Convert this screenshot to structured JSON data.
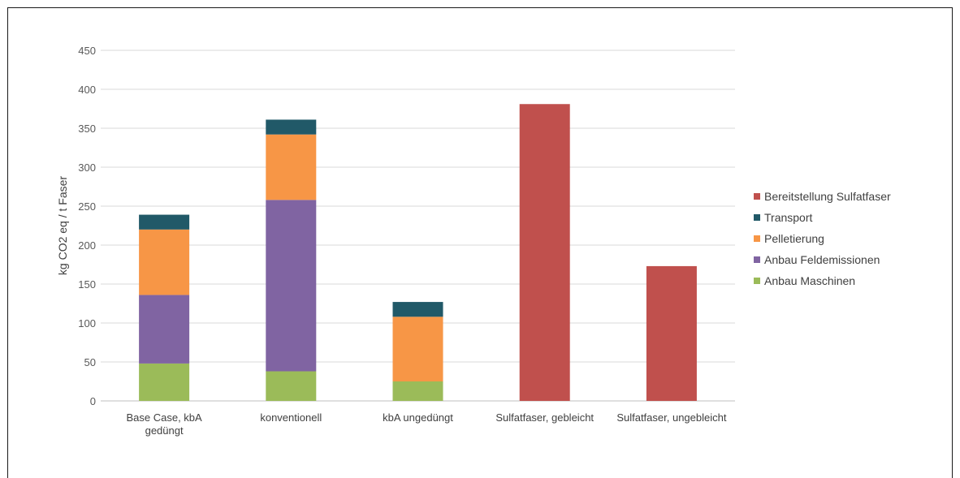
{
  "chart_data": {
    "type": "bar",
    "stacked": true,
    "ylabel": "kg CO2 eq / t Faser",
    "ylim": [
      0,
      450
    ],
    "yticks": [
      0,
      50,
      100,
      150,
      200,
      250,
      300,
      350,
      400,
      450
    ],
    "grid": true,
    "legend_position": "right",
    "categories": [
      [
        "Base Case, kbA",
        "gedüngt"
      ],
      [
        "konventionell"
      ],
      [
        "kbA ungedüngt"
      ],
      [
        "Sulfatfaser, gebleicht"
      ],
      [
        "Sulfatfaser, ungebleicht"
      ]
    ],
    "series": [
      {
        "name": "Anbau Maschinen",
        "color": "#9bbb59",
        "values": [
          48,
          38,
          25,
          0,
          0
        ]
      },
      {
        "name": "Anbau Feldemissionen",
        "color": "#8064a2",
        "values": [
          88,
          220,
          0,
          0,
          0
        ]
      },
      {
        "name": "Pelletierung",
        "color": "#f79646",
        "values": [
          84,
          84,
          83,
          0,
          0
        ]
      },
      {
        "name": "Transport",
        "color": "#215968",
        "values": [
          19,
          19,
          19,
          0,
          0
        ]
      },
      {
        "name": "Bereitstellung Sulfatfaser",
        "color": "#c0504d",
        "values": [
          0,
          0,
          0,
          381,
          173
        ]
      }
    ]
  }
}
